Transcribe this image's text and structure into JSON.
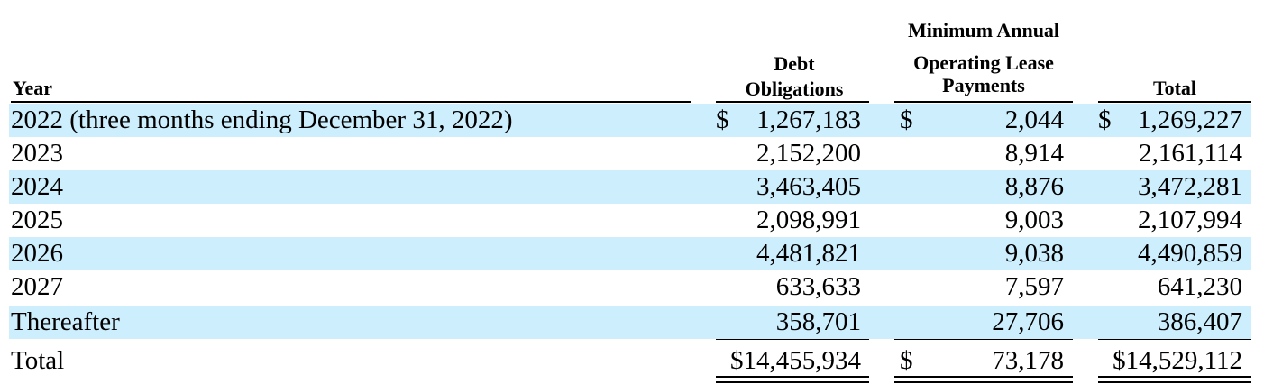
{
  "headers": {
    "year": "Year",
    "debt_line1": "Debt",
    "debt_line2": "Obligations",
    "lease_line1": "Minimum Annual",
    "lease_line2": "Operating Lease",
    "lease_line3": "Payments",
    "total": "Total"
  },
  "currency_symbol": "$",
  "rows": [
    {
      "label": "2022 (three months ending December 31, 2022)",
      "debt": "1,267,183",
      "lease": "2,044",
      "total": "1,269,227"
    },
    {
      "label": "2023",
      "debt": "2,152,200",
      "lease": "8,914",
      "total": "2,161,114"
    },
    {
      "label": "2024",
      "debt": "3,463,405",
      "lease": "8,876",
      "total": "3,472,281"
    },
    {
      "label": "2025",
      "debt": "2,098,991",
      "lease": "9,003",
      "total": "2,107,994"
    },
    {
      "label": "2026",
      "debt": "4,481,821",
      "lease": "9,038",
      "total": "4,490,859"
    },
    {
      "label": "2027",
      "debt": "633,633",
      "lease": "7,597",
      "total": "641,230"
    },
    {
      "label": "Thereafter",
      "debt": "358,701",
      "lease": "27,706",
      "total": "386,407"
    }
  ],
  "total_row": {
    "label": "Total",
    "debt": "$14,455,934",
    "lease": "73,178",
    "total": "$14,529,112"
  },
  "colors": {
    "row_shade": "#cdeefd"
  }
}
